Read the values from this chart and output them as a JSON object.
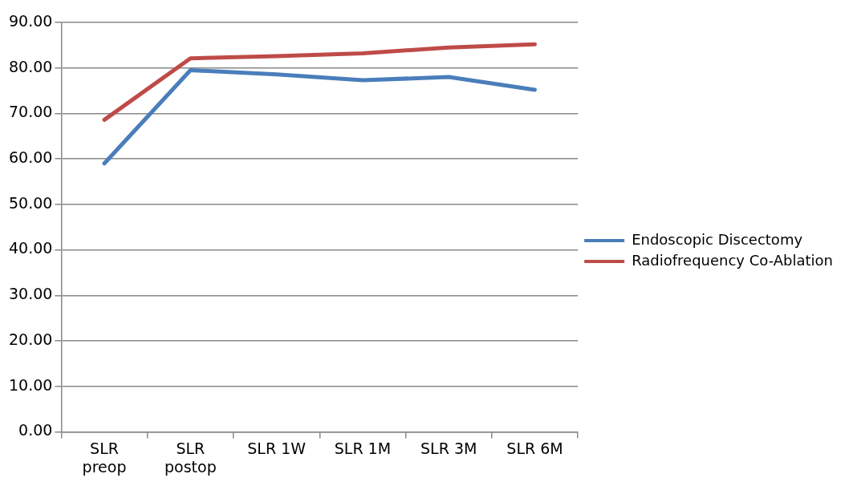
{
  "chart_data": {
    "type": "line",
    "categories": [
      "SLR preop",
      "SLR postop",
      "SLR 1W",
      "SLR 1M",
      "SLR 3M",
      "SLR 6M"
    ],
    "series": [
      {
        "name": "Endoscopic Discectomy",
        "color": "#4a7ebb",
        "values": [
          59.0,
          79.5,
          78.6,
          77.3,
          78.0,
          75.2
        ]
      },
      {
        "name": "Radiofrequency Co-Ablation",
        "color": "#be4b48",
        "values": [
          68.6,
          82.1,
          82.6,
          83.2,
          84.5,
          85.2
        ]
      }
    ],
    "ylim": [
      0,
      90
    ],
    "yticks": [
      {
        "value": 0,
        "label": "0.00"
      },
      {
        "value": 10,
        "label": "10.00"
      },
      {
        "value": 20,
        "label": "20.00"
      },
      {
        "value": 30,
        "label": "30.00"
      },
      {
        "value": 40,
        "label": "40.00"
      },
      {
        "value": 50,
        "label": "50.00"
      },
      {
        "value": 60,
        "label": "60.00"
      },
      {
        "value": 70,
        "label": "70.00"
      },
      {
        "value": 80,
        "label": "80.00"
      },
      {
        "value": 90,
        "label": "90.00"
      }
    ],
    "grid": "y",
    "legend": "right",
    "marker": "none",
    "line_style": "solid"
  }
}
